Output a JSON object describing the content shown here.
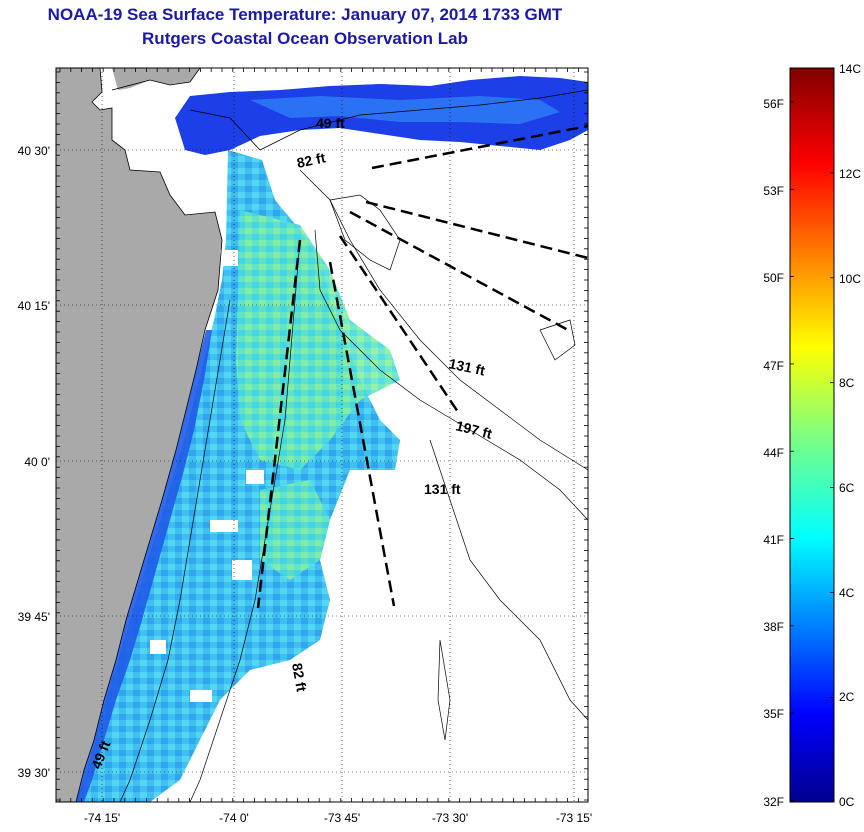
{
  "title_line1": "NOAA-19 Sea Surface Temperature:  January 07, 2014 1733 GMT",
  "title_line2": "Rutgers Coastal Ocean Observation Lab",
  "map": {
    "lon_ticks": [
      "-74 15'",
      "-74 0'",
      "-73 45'",
      "-73 30'",
      "-73 15'"
    ],
    "lat_ticks": [
      "40 30'",
      "40 15'",
      "40 0'",
      "39 45'",
      "39 30'"
    ],
    "depth_labels": [
      "49 ft",
      "82 ft",
      "131 ft",
      "197 ft",
      "131 ft",
      "82 ft",
      "49 ft"
    ],
    "colors": {
      "land": "#a9a9a9",
      "cloud_mask": "#ffffff",
      "coast": "#000000"
    }
  },
  "colorbar": {
    "celsius_labels": [
      "14C",
      "12C",
      "10C",
      "8C",
      "6C",
      "4C",
      "2C",
      "0C"
    ],
    "fahrenheit_labels": [
      "56F",
      "53F",
      "50F",
      "47F",
      "44F",
      "41F",
      "38F",
      "35F",
      "32F"
    ],
    "colormap": "jet",
    "range_c": [
      0,
      14
    ]
  }
}
